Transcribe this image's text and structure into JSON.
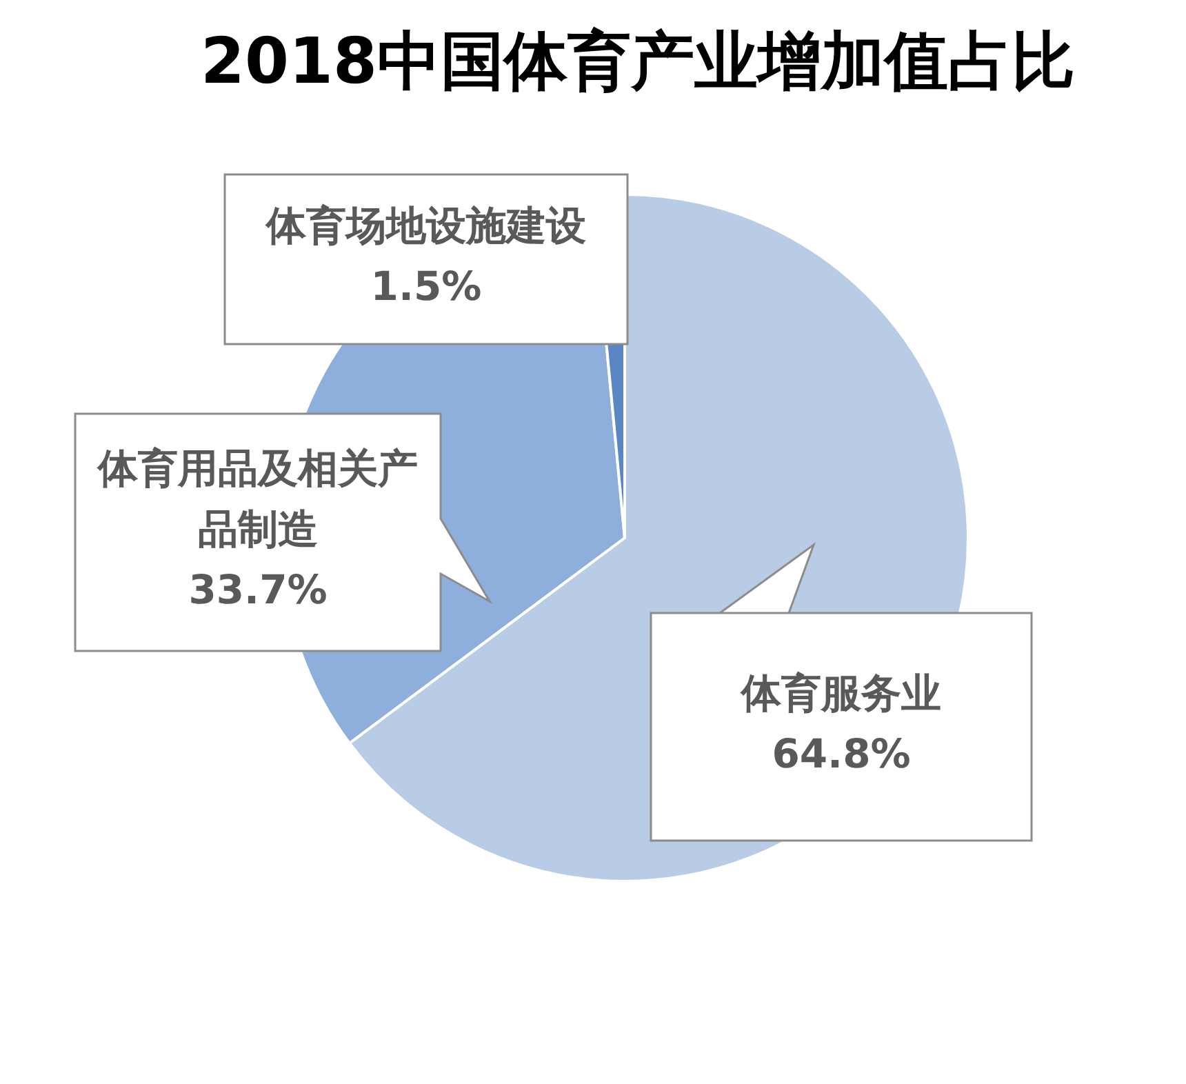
{
  "chart_data": {
    "type": "pie",
    "title": "2018中国体育产业增加值占比",
    "categories": [
      "体育服务业",
      "体育用品及相关产品制造",
      "体育场地设施建设"
    ],
    "values": [
      64.8,
      33.7,
      1.5
    ],
    "colors": [
      "#b9cce5",
      "#8eaedb",
      "#5b86c4"
    ],
    "value_labels": [
      "64.8%",
      "33.7%",
      "1.5%"
    ],
    "legend": false
  }
}
